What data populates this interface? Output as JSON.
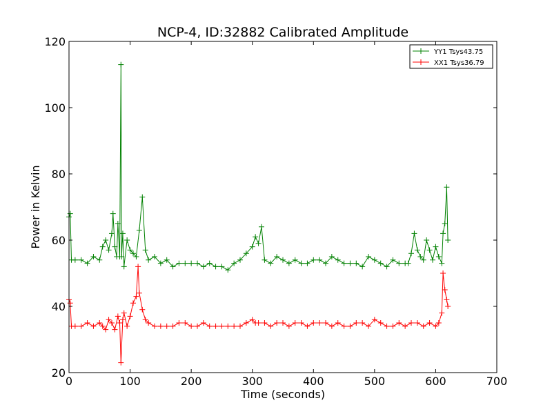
{
  "chart_data": {
    "type": "line",
    "title": "NCP-4, ID:32882 Calibrated Amplitude",
    "xlabel": "Time (seconds)",
    "ylabel": "Power in Kelvin",
    "xlim": [
      0,
      700
    ],
    "ylim": [
      20,
      120
    ],
    "xticks": [
      0,
      100,
      200,
      300,
      400,
      500,
      600,
      700
    ],
    "yticks": [
      20,
      40,
      60,
      80,
      100,
      120
    ],
    "grid": false,
    "legend_position": "top-right",
    "marker": "+",
    "series": [
      {
        "name": "YY1 Tsys43.75",
        "color": "#008000",
        "x": [
          0,
          2,
          4,
          10,
          20,
          30,
          40,
          50,
          55,
          60,
          65,
          70,
          72,
          75,
          78,
          80,
          83,
          85,
          86,
          88,
          90,
          95,
          100,
          105,
          110,
          115,
          120,
          125,
          130,
          140,
          150,
          160,
          170,
          180,
          190,
          200,
          210,
          220,
          230,
          240,
          250,
          260,
          270,
          280,
          290,
          300,
          305,
          310,
          315,
          320,
          330,
          340,
          350,
          360,
          370,
          380,
          390,
          400,
          410,
          420,
          430,
          440,
          450,
          460,
          470,
          480,
          490,
          500,
          510,
          520,
          530,
          540,
          550,
          555,
          560,
          565,
          570,
          575,
          580,
          585,
          590,
          595,
          600,
          605,
          610,
          612,
          615,
          618,
          620
        ],
        "y": [
          67,
          68,
          54,
          54,
          54,
          53,
          55,
          54,
          58,
          60,
          57,
          62,
          68,
          58,
          55,
          65,
          55,
          113,
          55,
          62,
          52,
          60,
          57,
          56,
          55,
          63,
          73,
          57,
          54,
          55,
          53,
          54,
          52,
          53,
          53,
          53,
          53,
          52,
          53,
          52,
          52,
          51,
          53,
          54,
          56,
          58,
          61,
          59,
          64,
          54,
          53,
          55,
          54,
          53,
          54,
          53,
          53,
          54,
          54,
          53,
          55,
          54,
          53,
          53,
          53,
          52,
          55,
          54,
          53,
          52,
          54,
          53,
          53,
          53,
          56,
          62,
          57,
          55,
          54,
          60,
          57,
          54,
          58,
          55,
          53,
          62,
          65,
          76,
          60
        ]
      },
      {
        "name": "XX1 Tsys36.79",
        "color": "#ff0000",
        "x": [
          0,
          2,
          4,
          10,
          20,
          30,
          40,
          50,
          55,
          60,
          65,
          70,
          75,
          80,
          83,
          85,
          88,
          90,
          95,
          100,
          105,
          110,
          113,
          115,
          120,
          125,
          130,
          140,
          150,
          160,
          170,
          180,
          190,
          200,
          210,
          220,
          230,
          240,
          250,
          260,
          270,
          280,
          290,
          300,
          305,
          310,
          320,
          330,
          340,
          350,
          360,
          370,
          380,
          390,
          400,
          410,
          420,
          430,
          440,
          450,
          460,
          470,
          480,
          490,
          500,
          510,
          520,
          530,
          540,
          550,
          560,
          570,
          580,
          590,
          600,
          605,
          610,
          612,
          615,
          618,
          620
        ],
        "y": [
          42,
          41,
          34,
          34,
          34,
          35,
          34,
          35,
          34,
          33,
          36,
          35,
          33,
          37,
          35,
          23,
          36,
          38,
          34,
          37,
          41,
          43,
          52,
          44,
          39,
          36,
          35,
          34,
          34,
          34,
          34,
          35,
          35,
          34,
          34,
          35,
          34,
          34,
          34,
          34,
          34,
          34,
          35,
          36,
          35,
          35,
          35,
          34,
          35,
          35,
          34,
          35,
          35,
          34,
          35,
          35,
          35,
          34,
          35,
          34,
          34,
          35,
          35,
          34,
          36,
          35,
          34,
          34,
          35,
          34,
          35,
          35,
          34,
          35,
          34,
          35,
          38,
          50,
          45,
          42,
          40
        ]
      }
    ]
  }
}
